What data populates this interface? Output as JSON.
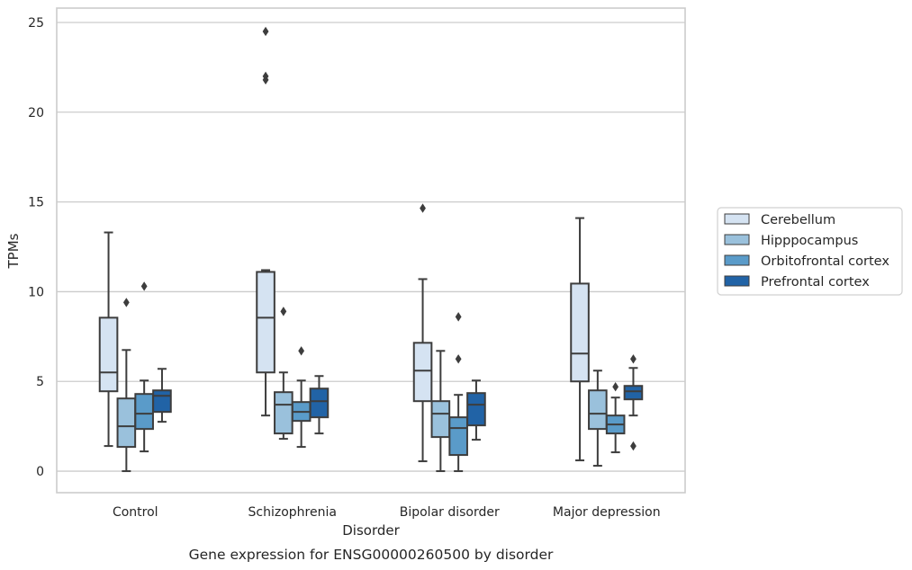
{
  "caption": "Gene expression for ENSG00000260500 by disorder",
  "chart_data": {
    "type": "box",
    "xlabel": "Disorder",
    "ylabel": "TPMs",
    "ylim": [
      -1.2,
      25.8
    ],
    "yticks": [
      0,
      5,
      10,
      15,
      20,
      25
    ],
    "grid": "horizontal",
    "legend_position": "right",
    "categories": [
      "Control",
      "Schizophrenia",
      "Bipolar disorder",
      "Major depression"
    ],
    "series": [
      {
        "name": "Cerebellum",
        "color": "#d5e3f2",
        "boxes": [
          {
            "whislo": 1.4,
            "q1": 4.45,
            "med": 5.5,
            "q3": 8.55,
            "whishi": 13.3,
            "fliers": []
          },
          {
            "whislo": 3.1,
            "q1": 5.5,
            "med": 8.55,
            "q3": 11.1,
            "whishi": 11.2,
            "fliers": [
              21.8,
              22.0,
              24.5
            ]
          },
          {
            "whislo": 0.55,
            "q1": 3.9,
            "med": 5.6,
            "q3": 7.15,
            "whishi": 10.7,
            "fliers": [
              14.65
            ]
          },
          {
            "whislo": 0.6,
            "q1": 5.0,
            "med": 6.55,
            "q3": 10.45,
            "whishi": 14.1,
            "fliers": []
          }
        ]
      },
      {
        "name": "Hipppocampus",
        "color": "#9ac1dc",
        "boxes": [
          {
            "whislo": 0.0,
            "q1": 1.35,
            "med": 2.5,
            "q3": 4.05,
            "whishi": 6.75,
            "fliers": [
              9.4
            ]
          },
          {
            "whislo": 1.8,
            "q1": 2.1,
            "med": 3.7,
            "q3": 4.4,
            "whishi": 5.5,
            "fliers": [
              8.9
            ]
          },
          {
            "whislo": 0.0,
            "q1": 1.9,
            "med": 3.2,
            "q3": 3.9,
            "whishi": 6.7,
            "fliers": []
          },
          {
            "whislo": 0.3,
            "q1": 2.35,
            "med": 3.2,
            "q3": 4.5,
            "whishi": 5.6,
            "fliers": []
          }
        ]
      },
      {
        "name": "Orbitofrontal cortex",
        "color": "#5a9bc9",
        "boxes": [
          {
            "whislo": 1.1,
            "q1": 2.35,
            "med": 3.2,
            "q3": 4.3,
            "whishi": 5.05,
            "fliers": [
              10.3
            ]
          },
          {
            "whislo": 1.35,
            "q1": 2.8,
            "med": 3.3,
            "q3": 3.85,
            "whishi": 5.05,
            "fliers": [
              6.7
            ]
          },
          {
            "whislo": 0.0,
            "q1": 0.9,
            "med": 2.4,
            "q3": 3.0,
            "whishi": 4.25,
            "fliers": [
              6.25,
              8.6
            ]
          },
          {
            "whislo": 1.05,
            "q1": 2.1,
            "med": 2.6,
            "q3": 3.1,
            "whishi": 4.1,
            "fliers": [
              4.7
            ]
          }
        ]
      },
      {
        "name": "Prefrontal cortex",
        "color": "#2163a6",
        "boxes": [
          {
            "whislo": 2.75,
            "q1": 3.3,
            "med": 4.2,
            "q3": 4.5,
            "whishi": 5.7,
            "fliers": []
          },
          {
            "whislo": 2.1,
            "q1": 3.0,
            "med": 3.9,
            "q3": 4.6,
            "whishi": 5.3,
            "fliers": []
          },
          {
            "whislo": 1.75,
            "q1": 2.55,
            "med": 3.7,
            "q3": 4.35,
            "whishi": 5.05,
            "fliers": []
          },
          {
            "whislo": 3.1,
            "q1": 4.0,
            "med": 4.45,
            "q3": 4.75,
            "whishi": 5.75,
            "fliers": [
              1.4,
              6.25
            ]
          }
        ]
      }
    ]
  }
}
